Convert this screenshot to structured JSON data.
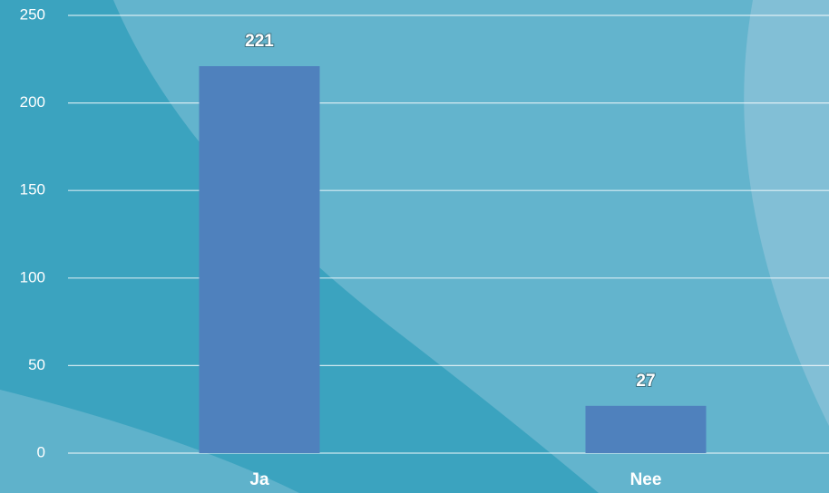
{
  "chart_data": {
    "type": "bar",
    "categories": [
      "Ja",
      "Nee"
    ],
    "values": [
      221,
      27
    ],
    "color": "#4f81bd",
    "ylim": [
      0,
      250
    ],
    "yticks": [
      0,
      50,
      100,
      150,
      200,
      250
    ],
    "grid": true
  }
}
